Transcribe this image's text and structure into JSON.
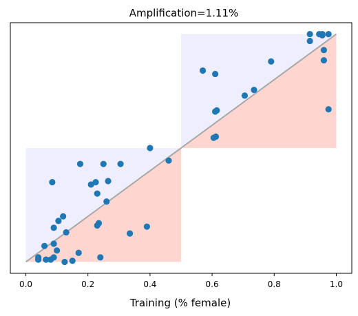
{
  "chart_data": {
    "type": "scatter",
    "title": "Amplification=1.11%",
    "xlabel": "Training (% female)",
    "ylabel": "",
    "xlim": [
      -0.05,
      1.05
    ],
    "ylim": [
      -0.05,
      1.05
    ],
    "x_ticks": [
      0.0,
      0.2,
      0.4,
      0.6,
      0.8,
      1.0
    ],
    "x_tick_labels": [
      "0.0",
      "0.2",
      "0.4",
      "0.6",
      "0.8",
      "1.0"
    ],
    "y_ticks_shown": false,
    "grid": false,
    "colors": {
      "points": "#1f77b4",
      "reference_line": "#a8a8a8",
      "region_red": "#ffd5d0",
      "region_blue": "#eeeefc"
    },
    "regions": [
      {
        "kind": "blue",
        "x": [
          0.0,
          0.5
        ],
        "y": [
          0.0,
          0.5
        ]
      },
      {
        "kind": "red",
        "x": [
          0.0,
          0.5
        ],
        "y": [
          0.0,
          0.5
        ]
      },
      {
        "kind": "red",
        "x": [
          0.5,
          1.0
        ],
        "y": [
          0.5,
          1.0
        ]
      },
      {
        "kind": "blue",
        "x": [
          0.5,
          1.0
        ],
        "y": [
          0.5,
          1.0
        ]
      }
    ],
    "reference_line": {
      "from": [
        0.0,
        0.0
      ],
      "to": [
        1.0,
        1.0
      ]
    },
    "points": [
      {
        "x": 0.04,
        "y": 0.02
      },
      {
        "x": 0.04,
        "y": 0.01
      },
      {
        "x": 0.06,
        "y": 0.07
      },
      {
        "x": 0.065,
        "y": 0.01
      },
      {
        "x": 0.08,
        "y": 0.01
      },
      {
        "x": 0.09,
        "y": 0.02
      },
      {
        "x": 0.09,
        "y": 0.08
      },
      {
        "x": 0.1,
        "y": 0.05
      },
      {
        "x": 0.09,
        "y": 0.15
      },
      {
        "x": 0.105,
        "y": 0.18
      },
      {
        "x": 0.085,
        "y": 0.35
      },
      {
        "x": 0.12,
        "y": 0.2
      },
      {
        "x": 0.13,
        "y": 0.13
      },
      {
        "x": 0.125,
        "y": 0.0
      },
      {
        "x": 0.15,
        "y": 0.005
      },
      {
        "x": 0.17,
        "y": 0.04
      },
      {
        "x": 0.175,
        "y": 0.43
      },
      {
        "x": 0.21,
        "y": 0.34
      },
      {
        "x": 0.225,
        "y": 0.35
      },
      {
        "x": 0.23,
        "y": 0.3
      },
      {
        "x": 0.235,
        "y": 0.17
      },
      {
        "x": 0.23,
        "y": 0.16
      },
      {
        "x": 0.24,
        "y": 0.02
      },
      {
        "x": 0.25,
        "y": 0.43
      },
      {
        "x": 0.26,
        "y": 0.265
      },
      {
        "x": 0.265,
        "y": 0.355
      },
      {
        "x": 0.305,
        "y": 0.43
      },
      {
        "x": 0.335,
        "y": 0.125
      },
      {
        "x": 0.39,
        "y": 0.155
      },
      {
        "x": 0.4,
        "y": 0.5
      },
      {
        "x": 0.46,
        "y": 0.445
      },
      {
        "x": 0.57,
        "y": 0.84
      },
      {
        "x": 0.61,
        "y": 0.825
      },
      {
        "x": 0.61,
        "y": 0.66
      },
      {
        "x": 0.615,
        "y": 0.665
      },
      {
        "x": 0.605,
        "y": 0.545
      },
      {
        "x": 0.612,
        "y": 0.55
      },
      {
        "x": 0.705,
        "y": 0.73
      },
      {
        "x": 0.735,
        "y": 0.755
      },
      {
        "x": 0.79,
        "y": 0.88
      },
      {
        "x": 0.915,
        "y": 0.97
      },
      {
        "x": 0.915,
        "y": 1.0
      },
      {
        "x": 0.945,
        "y": 1.0
      },
      {
        "x": 0.955,
        "y": 0.995
      },
      {
        "x": 0.955,
        "y": 1.0
      },
      {
        "x": 0.975,
        "y": 1.0
      },
      {
        "x": 0.96,
        "y": 0.93
      },
      {
        "x": 0.96,
        "y": 0.885
      },
      {
        "x": 0.975,
        "y": 0.67
      }
    ]
  }
}
